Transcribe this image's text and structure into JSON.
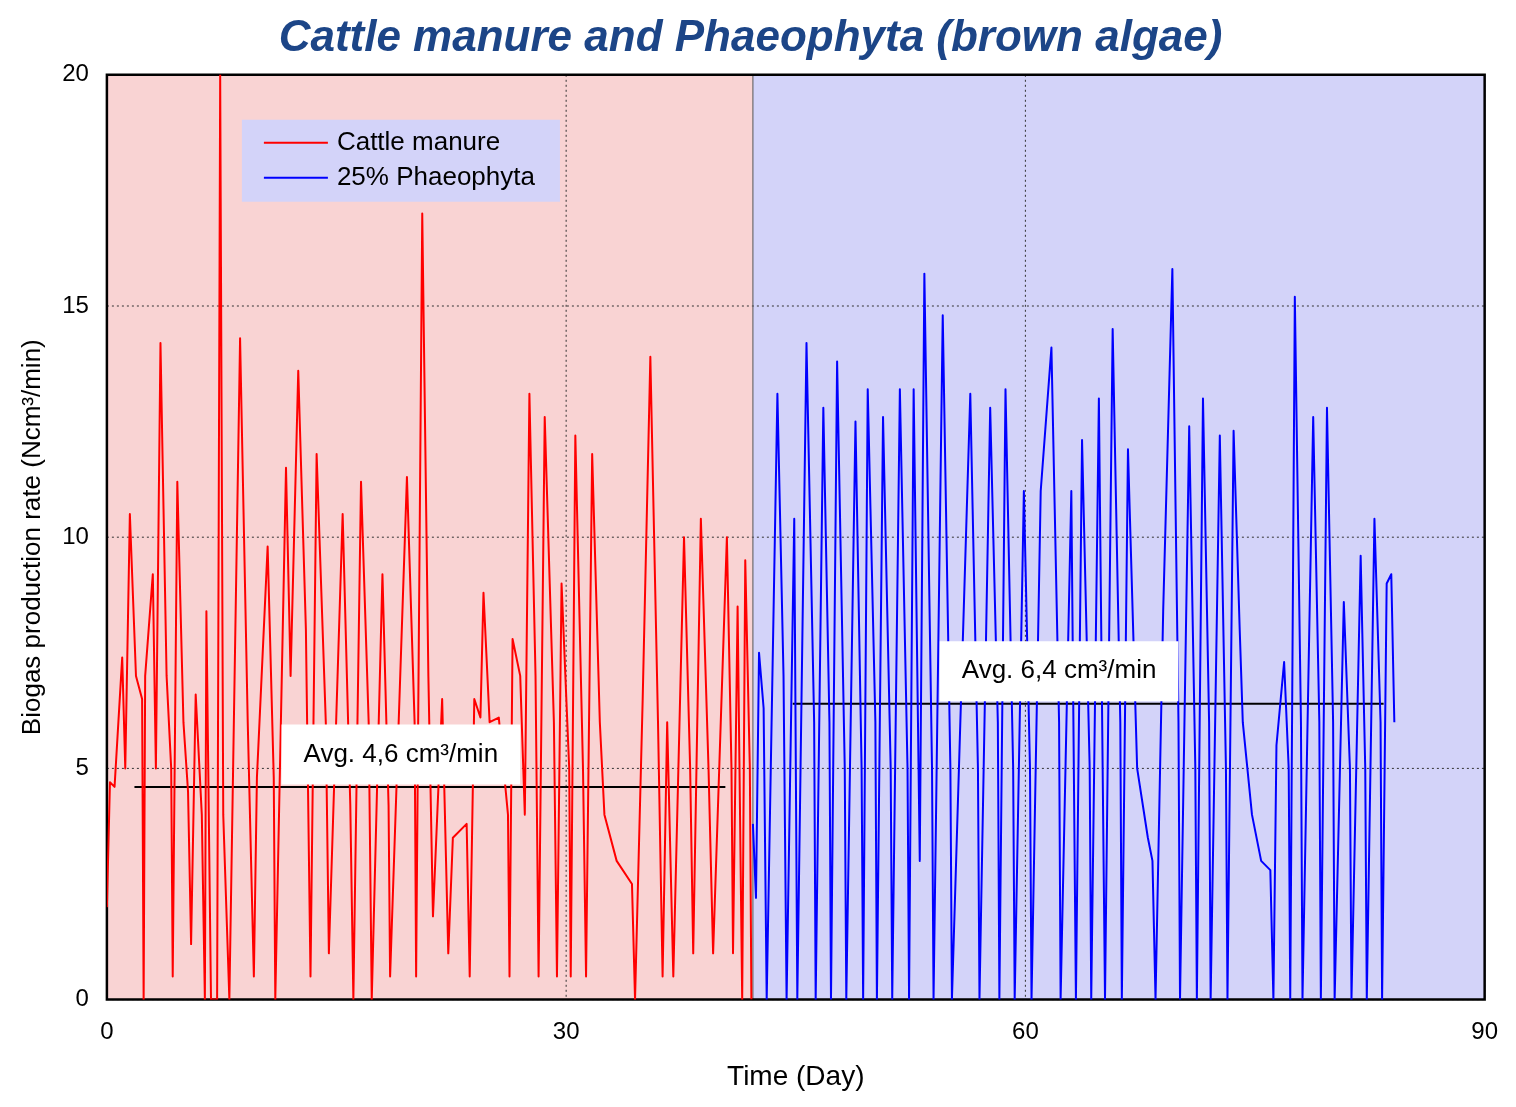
{
  "chart_data": {
    "type": "line",
    "title": "Cattle manure and Phaeophyta (brown algae)",
    "xlabel": "Time (Day)",
    "ylabel": "Biogas production rate (Ncm³/min)",
    "xlim": [
      0,
      90
    ],
    "xticks": [
      0,
      30,
      60,
      90
    ],
    "ylim": [
      0,
      20
    ],
    "yticks": [
      0,
      5,
      10,
      15,
      20
    ],
    "grid": true,
    "legend": "top left",
    "bands": [
      {
        "axis": "x",
        "from": 0,
        "to": 42.2,
        "color": "#f9d3d3"
      },
      {
        "axis": "x",
        "from": 42.2,
        "to": 90,
        "color": "#d3d3f9"
      }
    ],
    "ref_lines": [
      {
        "axis": "x",
        "value": 42.2,
        "color": "#555555"
      }
    ],
    "annotations": [
      {
        "text": "Avg. 4,6 cm³/min",
        "x": 19.2,
        "y": 5.3
      },
      {
        "text": "Avg. 6,4 cm³/min",
        "x": 62.2,
        "y": 7.1
      }
    ],
    "series": [
      {
        "name": "Cattle manure",
        "color": "#ff0000",
        "x": [
          0,
          0.2,
          0.5,
          1.0,
          1.2,
          1.5,
          1.9,
          2.3,
          2.4,
          2.5,
          3.0,
          3.2,
          3.5,
          3.9,
          4.2,
          4.3,
          4.6,
          5.0,
          5.3,
          5.5,
          5.8,
          6.2,
          6.4,
          6.5,
          6.8,
          7.2,
          7.4,
          7.6,
          8.0,
          8.7,
          9.2,
          9.6,
          9.8,
          10.5,
          10.9,
          11.0,
          11.7,
          12.0,
          12.5,
          13.0,
          13.3,
          13.7,
          14.3,
          14.5,
          15.4,
          15.9,
          16.1,
          16.6,
          17.1,
          17.3,
          18.0,
          18.4,
          18.5,
          19.6,
          20.1,
          20.2,
          20.6,
          21.0,
          21.3,
          21.9,
          22.3,
          22.6,
          23.5,
          23.7,
          24.0,
          24.4,
          24.6,
          25.0,
          25.6,
          26.2,
          26.3,
          26.5,
          27.0,
          27.3,
          27.6,
          28.0,
          28.2,
          28.6,
          29.2,
          29.4,
          29.7,
          30.2,
          30.3,
          30.6,
          31.1,
          31.3,
          31.7,
          32.2,
          32.5,
          33.3,
          34.3,
          34.5,
          35.0,
          35.5,
          36.0,
          36.3,
          36.6,
          37.0,
          37.7,
          38.1,
          38.3,
          38.8,
          39.3,
          39.6,
          40.5,
          40.8,
          40.9,
          41.2,
          41.5,
          41.7,
          42.0,
          42.1
        ],
        "values": [
          2,
          4.7,
          4.6,
          7.4,
          5,
          10.5,
          7,
          6.5,
          0,
          7,
          9.2,
          5,
          14.2,
          7,
          5,
          0.5,
          11.2,
          6,
          4.5,
          1.2,
          6.6,
          4,
          0,
          8.4,
          0,
          0,
          20,
          4,
          0,
          14.3,
          6,
          0.5,
          4.8,
          9.8,
          4.8,
          0,
          11.5,
          7,
          13.6,
          8,
          0.5,
          11.8,
          6,
          1,
          10.5,
          4.2,
          0,
          11.2,
          6,
          0,
          9.2,
          4.2,
          0.5,
          11.3,
          6,
          0.5,
          17,
          7,
          1.8,
          6.5,
          1,
          3.5,
          3.8,
          0.5,
          6.5,
          6.1,
          8.8,
          6,
          6.1,
          4,
          0.5,
          7.8,
          7,
          4,
          13.1,
          7,
          0.5,
          12.6,
          6,
          0.5,
          9,
          5,
          0.5,
          12.2,
          5,
          0.5,
          11.8,
          6,
          4,
          3,
          2.5,
          0,
          6.5,
          13.9,
          6,
          0.5,
          6,
          0.5,
          10,
          5,
          1,
          10.4,
          5,
          1,
          10,
          5,
          1,
          8.5,
          0,
          9.5,
          5,
          0
        ]
      },
      {
        "name": "25% Phaeophyta",
        "color": "#0000ff",
        "x": [
          42.2,
          42.4,
          42.6,
          42.9,
          43.1,
          43.8,
          44.2,
          44.4,
          44.9,
          45.1,
          45.7,
          46.2,
          46.3,
          46.8,
          47.2,
          47.3,
          47.7,
          48.2,
          48.3,
          48.9,
          49.3,
          49.4,
          49.7,
          50.2,
          50.3,
          50.7,
          51.2,
          51.3,
          51.8,
          52.3,
          52.4,
          52.7,
          53.1,
          53.4,
          53.9,
          54.0,
          54.6,
          55.1,
          55.2,
          56.4,
          56.9,
          57.0,
          57.7,
          58.2,
          58.3,
          58.7,
          59.2,
          59.3,
          59.9,
          60.3,
          60.4,
          61.0,
          61.7,
          62.2,
          62.3,
          63.0,
          63.3,
          63.7,
          64.2,
          64.3,
          64.8,
          65.2,
          65.7,
          66.2,
          66.3,
          66.7,
          67.3,
          68.0,
          68.3,
          68.5,
          69.0,
          69.6,
          70.0,
          70.1,
          70.7,
          71.1,
          71.2,
          71.6,
          72.0,
          72.1,
          72.7,
          73.1,
          73.2,
          73.6,
          74.0,
          74.2,
          74.8,
          75.4,
          76.0,
          76.2,
          76.4,
          76.9,
          77.2,
          77.3,
          77.6,
          78.0,
          78.1,
          78.8,
          79.2,
          79.3,
          79.7,
          80.1,
          80.2,
          80.8,
          81.2,
          81.3,
          81.9,
          82.2,
          82.3,
          82.8,
          83.2,
          83.3,
          83.6,
          83.9,
          84.1
        ],
        "values": [
          3.8,
          2.2,
          7.5,
          6.3,
          0,
          13.1,
          7,
          0,
          10.4,
          0,
          14.2,
          6,
          0,
          12.8,
          6,
          0,
          13.8,
          5,
          0,
          12.5,
          5,
          0,
          13.2,
          6,
          0,
          12.6,
          5,
          0,
          13.2,
          5,
          0,
          13.2,
          3,
          15.7,
          5,
          0,
          14.8,
          5,
          0,
          13.1,
          5,
          0,
          12.8,
          6,
          0,
          13.2,
          5,
          0,
          11,
          5,
          0,
          11,
          14.1,
          6,
          0,
          11,
          0,
          12.1,
          5,
          0,
          13,
          0,
          14.5,
          6,
          0,
          11.9,
          5,
          3.5,
          3,
          0,
          8.4,
          15.8,
          6,
          0,
          12.4,
          5,
          0,
          13,
          6,
          0,
          12.2,
          5,
          0,
          12.3,
          8,
          6,
          4,
          3,
          2.8,
          0,
          5.5,
          7.3,
          5,
          0,
          15.2,
          6,
          0,
          12.6,
          6,
          0,
          12.8,
          6,
          0,
          8.6,
          5,
          0,
          9.6,
          5,
          0,
          10.4,
          6,
          0,
          9,
          9.2,
          6
        ]
      },
      {
        "type": "line",
        "color": "#000000",
        "x": [
          1.8,
          40.4
        ],
        "values": [
          4.6,
          4.6
        ]
      },
      {
        "type": "line",
        "color": "#000000",
        "x": [
          44.8,
          83.4
        ],
        "values": [
          6.4,
          6.4
        ]
      }
    ]
  }
}
